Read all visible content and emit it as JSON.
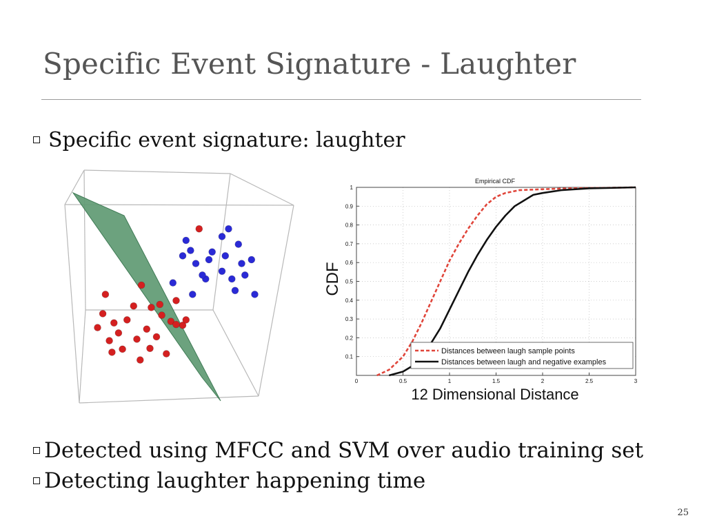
{
  "slide": {
    "title": "Specific Event Signature - Laughter",
    "bullets": [
      "Specific event signature: laughter",
      "Detected using MFCC and SVM over audio training set",
      "Detecting laughter happening time"
    ],
    "page_number": "25"
  },
  "colors": {
    "title": "#555555",
    "red_points": "#d42020",
    "blue_points": "#2a2ad6",
    "plane": "#5f9a73",
    "cdf_series_1": "#e0453a",
    "cdf_series_2": "#111111"
  },
  "chart_data": [
    {
      "type": "scatter",
      "title": "",
      "series": [
        {
          "name": "",
          "color": "#d42020",
          "points": [
            [
              0.52,
              0.3
            ],
            [
              0.68,
              0.34
            ],
            [
              0.95,
              0.2
            ],
            [
              1.1,
              0.35
            ],
            [
              0.3,
              0.62
            ],
            [
              0.75,
              0.72
            ],
            [
              1.42,
              0.7
            ],
            [
              1.35,
              0.28
            ],
            [
              0.55,
              0.68
            ],
            [
              1.2,
              0.5
            ],
            [
              0.48,
              0.45
            ],
            [
              0.9,
              0.47
            ],
            [
              1.05,
              0.6
            ],
            [
              1.6,
              0.65
            ],
            [
              1.28,
              0.78
            ],
            [
              0.38,
              0.8
            ],
            [
              0.85,
              0.9
            ],
            [
              1.12,
              0.88
            ],
            [
              1.25,
              0.92
            ],
            [
              1.5,
              0.97
            ],
            [
              1.5,
              0.66
            ],
            [
              1.65,
              0.72
            ],
            [
              0.62,
              0.55
            ],
            [
              1.85,
              1.9
            ],
            [
              0.42,
              1.05
            ],
            [
              0.97,
              1.17
            ]
          ]
        },
        {
          "name": "",
          "color": "#2a2ad6",
          "points": [
            [
              1.6,
              1.55
            ],
            [
              1.72,
              1.62
            ],
            [
              1.65,
              1.75
            ],
            [
              1.8,
              1.45
            ],
            [
              2.05,
              1.6
            ],
            [
              2.2,
              1.8
            ],
            [
              2.3,
              1.9
            ],
            [
              2.45,
              1.7
            ],
            [
              2.5,
              1.45
            ],
            [
              2.55,
              1.3
            ],
            [
              2.65,
              1.5
            ],
            [
              2.35,
              1.25
            ],
            [
              2.2,
              1.35
            ],
            [
              2.0,
              1.5
            ],
            [
              1.95,
              1.25
            ],
            [
              2.4,
              1.1
            ],
            [
              2.7,
              1.05
            ],
            [
              1.75,
              1.05
            ],
            [
              1.9,
              1.3
            ],
            [
              2.25,
              1.55
            ],
            [
              1.45,
              1.2
            ]
          ]
        }
      ]
    },
    {
      "type": "line",
      "title": "Empirical CDF",
      "xlabel": "12 Dimensional Distance",
      "ylabel": "CDF",
      "xlim": [
        0,
        3
      ],
      "ylim": [
        0,
        1
      ],
      "xticks": [
        0,
        0.5,
        1,
        1.5,
        2,
        2.5,
        3
      ],
      "yticks": [
        0.1,
        0.2,
        0.3,
        0.4,
        0.5,
        0.6,
        0.7,
        0.8,
        0.9,
        1
      ],
      "grid": true,
      "legend_position": "bottom-right",
      "series": [
        {
          "name": "Distances between laugh sample points",
          "style": "dashed",
          "color": "#e0453a",
          "x": [
            0.22,
            0.35,
            0.5,
            0.6,
            0.7,
            0.8,
            0.9,
            1.0,
            1.1,
            1.2,
            1.3,
            1.4,
            1.5,
            1.6,
            1.75,
            2.0,
            2.3,
            3.0
          ],
          "y": [
            0.0,
            0.03,
            0.1,
            0.18,
            0.28,
            0.39,
            0.5,
            0.61,
            0.7,
            0.78,
            0.85,
            0.91,
            0.95,
            0.97,
            0.985,
            0.99,
            0.995,
            1.0
          ]
        },
        {
          "name": "Distances between laugh and negative examples",
          "style": "solid",
          "color": "#111111",
          "x": [
            0.35,
            0.5,
            0.6,
            0.7,
            0.8,
            0.9,
            1.0,
            1.1,
            1.2,
            1.3,
            1.4,
            1.5,
            1.6,
            1.7,
            1.8,
            1.9,
            2.0,
            2.2,
            2.5,
            3.0
          ],
          "y": [
            0.0,
            0.02,
            0.05,
            0.1,
            0.17,
            0.25,
            0.35,
            0.45,
            0.55,
            0.64,
            0.72,
            0.79,
            0.85,
            0.9,
            0.93,
            0.96,
            0.97,
            0.985,
            0.995,
            1.0
          ]
        }
      ]
    }
  ]
}
